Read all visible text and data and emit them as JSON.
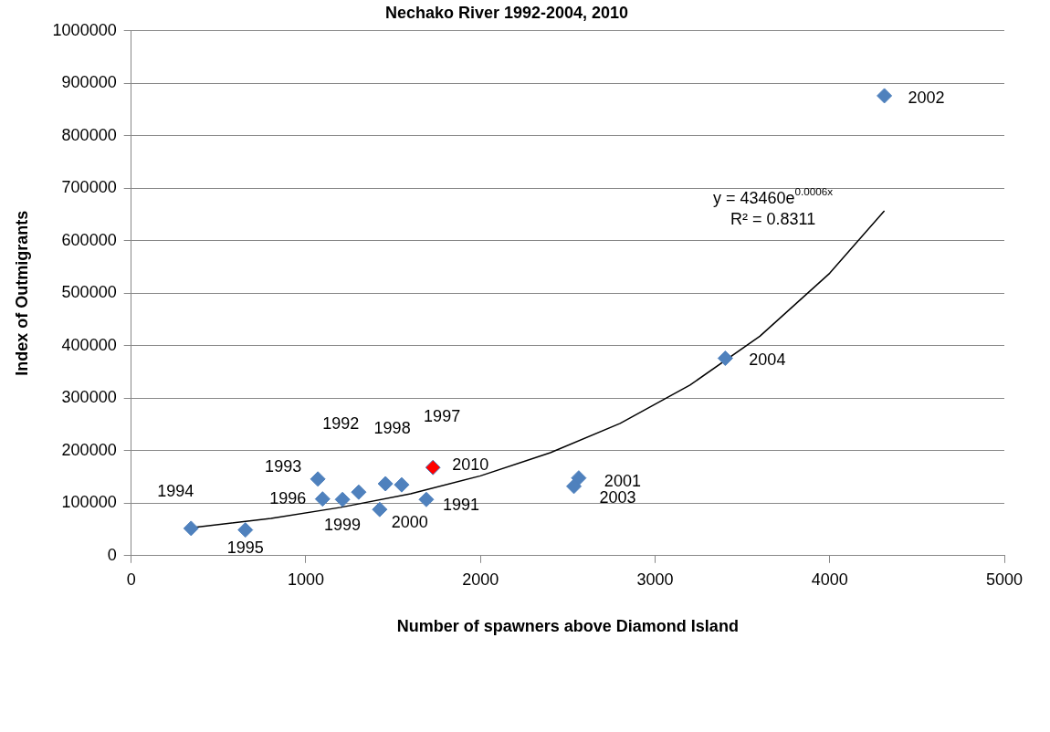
{
  "chart_data": {
    "type": "scatter",
    "title": "Nechako River 1992-2004, 2010",
    "xlabel": "Number of spawners above Diamond Island",
    "ylabel": "Index of Outmigrants",
    "xlim": [
      0,
      5000
    ],
    "xticks": [
      0,
      1000,
      2000,
      3000,
      4000,
      5000
    ],
    "ylim": [
      0,
      1000000
    ],
    "yticks": [
      0,
      100000,
      200000,
      300000,
      400000,
      500000,
      600000,
      700000,
      800000,
      900000,
      1000000
    ],
    "grid": "y",
    "legend": false,
    "marker": "diamond",
    "series": [
      {
        "color": "#4f81bd",
        "x": [
          343,
          654,
          1069,
          1096,
          1210,
          1303,
          1456,
          1549,
          1423,
          1690,
          1728,
          2563,
          2535,
          3402,
          4313
        ],
        "values": [
          52000,
          49000,
          146000,
          108000,
          107000,
          121000,
          137000,
          135000,
          88000,
          107000,
          168000,
          148000,
          132000,
          376000,
          876000
        ],
        "colors": [
          "#4f81bd",
          "#4f81bd",
          "#4f81bd",
          "#4f81bd",
          "#4f81bd",
          "#4f81bd",
          "#4f81bd",
          "#4f81bd",
          "#4f81bd",
          "#4f81bd",
          "#ff0000",
          "#4f81bd",
          "#4f81bd",
          "#4f81bd",
          "#4f81bd"
        ]
      },
      {
        "type": "line",
        "color": "#000000",
        "marker": "none",
        "x": [
          343,
          800,
          1200,
          1600,
          2000,
          2400,
          2800,
          3200,
          3600,
          4000,
          4313
        ],
        "values": [
          53000,
          71000,
          92000,
          118000,
          152000,
          196000,
          252000,
          325000,
          418000,
          538000,
          657000
        ]
      }
    ],
    "annotations": [
      {
        "text": "1994",
        "x": 343,
        "y": 52000
      },
      {
        "text": "1995",
        "x": 654,
        "y": 49000
      },
      {
        "text": "1993",
        "x": 1069,
        "y": 146000
      },
      {
        "text": "1996",
        "x": 1096,
        "y": 108000
      },
      {
        "text": "1999",
        "x": 1210,
        "y": 107000
      },
      "1992",
      "1998",
      "1997",
      {
        "text": "2000",
        "x": 1423,
        "y": 88000
      },
      {
        "text": "1991",
        "x": 1690,
        "y": 107000
      },
      {
        "text": "2010",
        "x": 1728,
        "y": 168000
      },
      {
        "text": "2001",
        "x": 2563,
        "y": 148000
      },
      {
        "text": "2003",
        "x": 2535,
        "y": 132000
      },
      {
        "text": "2004",
        "x": 3402,
        "y": 376000
      },
      {
        "text": "2002",
        "x": 4313,
        "y": 876000
      },
      "y = 43460e$^{0.0006x}$",
      "R² = 0.8311"
    ]
  }
}
